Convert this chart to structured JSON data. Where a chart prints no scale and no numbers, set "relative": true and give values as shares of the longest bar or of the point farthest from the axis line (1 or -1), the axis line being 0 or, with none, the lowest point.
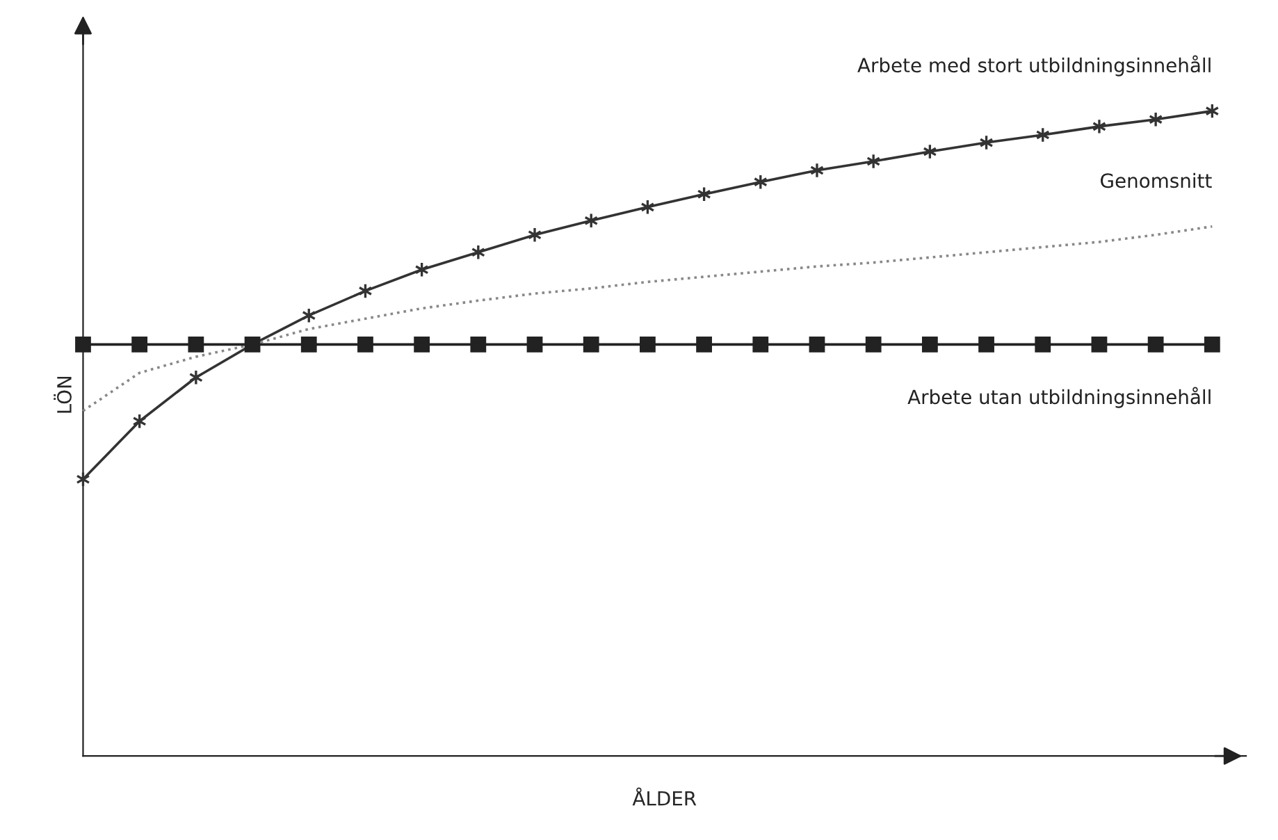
{
  "chart_data": {
    "type": "line",
    "relative": true,
    "xlabel": "ÅLDER",
    "ylabel": "LÖN",
    "legend": false,
    "tick_labels": false,
    "categories": [
      null,
      null,
      null,
      null,
      null,
      null,
      null,
      null,
      null,
      null,
      null,
      null,
      null,
      null,
      null,
      null,
      null,
      null,
      null,
      null,
      null
    ],
    "series": [
      {
        "name": "Arbete med stort utbildningsinnehåll",
        "color": "#333333",
        "marker": "cross",
        "line_style": "solid",
        "values": [
          0.429,
          0.519,
          0.587,
          0.638,
          0.683,
          0.721,
          0.754,
          0.781,
          0.808,
          0.83,
          0.851,
          0.871,
          0.89,
          0.908,
          0.922,
          0.937,
          0.951,
          0.963,
          0.976,
          0.987,
          1.0
        ]
      },
      {
        "name": "Genomsnitt",
        "color": "#888888",
        "marker": "none",
        "line_style": "dotted",
        "values": [
          0.535,
          0.594,
          0.619,
          0.638,
          0.662,
          0.678,
          0.694,
          0.706,
          0.717,
          0.725,
          0.735,
          0.743,
          0.751,
          0.759,
          0.765,
          0.773,
          0.781,
          0.789,
          0.797,
          0.808,
          0.821
        ]
      },
      {
        "name": "Arbete utan utbildningsinnehåll",
        "color": "#222222",
        "marker": "square",
        "line_style": "solid",
        "values": [
          0.638,
          0.638,
          0.638,
          0.638,
          0.638,
          0.638,
          0.638,
          0.638,
          0.638,
          0.638,
          0.638,
          0.638,
          0.638,
          0.638,
          0.638,
          0.638,
          0.638,
          0.638,
          0.638,
          0.638,
          0.638
        ]
      }
    ]
  }
}
